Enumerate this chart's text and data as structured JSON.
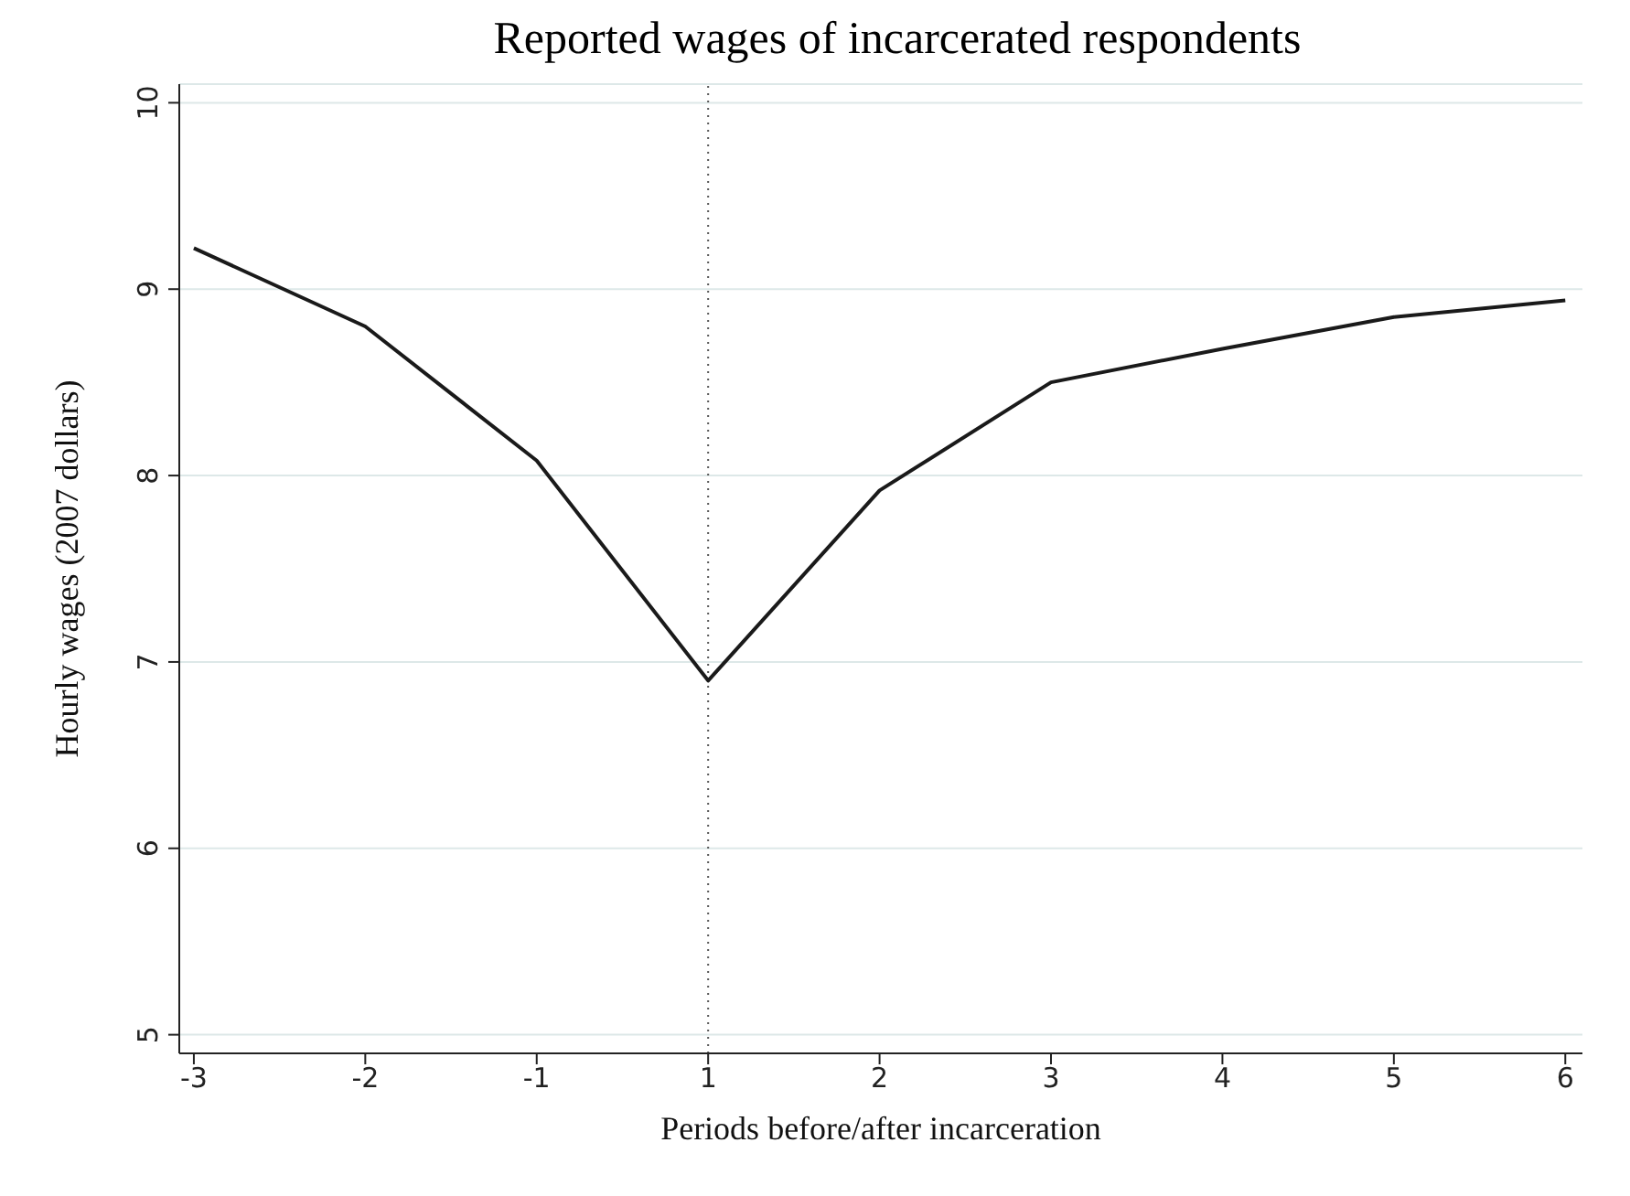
{
  "chart_data": {
    "type": "line",
    "title": "Reported wages of incarcerated respondents",
    "xlabel": "Periods before/after incarceration",
    "ylabel": "Hourly wages (2007 dollars)",
    "categories": [
      "-3",
      "-2",
      "-1",
      "1",
      "2",
      "3",
      "4",
      "5",
      "6"
    ],
    "series": [
      {
        "color": "#1a1a1a",
        "values": [
          9.22,
          8.8,
          8.08,
          6.9,
          7.92,
          8.5,
          8.68,
          8.85,
          8.94
        ]
      }
    ],
    "ylim": [
      4.9,
      10.1
    ],
    "yticks": [
      5,
      6,
      7,
      8,
      9,
      10
    ],
    "grid": "y",
    "marker": "none",
    "line_style": "solid",
    "ref_lines": [
      {
        "axis": "x",
        "value": "1",
        "color": "#555555",
        "line_style": "dotted"
      }
    ]
  }
}
